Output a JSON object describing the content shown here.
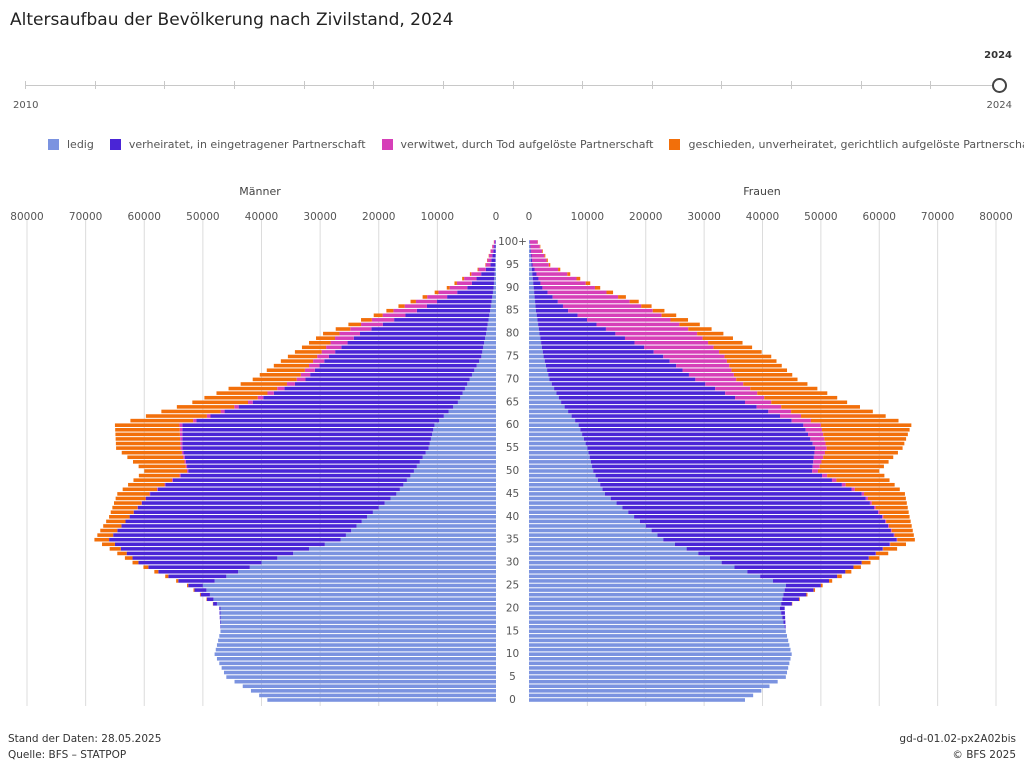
{
  "title": "Altersaufbau der Bevölkerung nach Zivilstand, 2024",
  "year_slider": {
    "start_label": "2010",
    "end_label": "2024",
    "current_label": "2024",
    "min": 2010,
    "max": 2024,
    "value": 2024
  },
  "legend": [
    {
      "label": "ledig",
      "color": "#7b93e0"
    },
    {
      "label": "verheiratet, in eingetragener Partnerschaft",
      "color": "#4a25d6"
    },
    {
      "label": "verwitwet, durch Tod aufgelöste Partnerschaft",
      "color": "#d63fb8"
    },
    {
      "label": "geschieden, unverheiratet, gerichtlich aufgelöste Partnerschaft",
      "color": "#f26f0a"
    }
  ],
  "footer": {
    "stand": "Stand der Daten: 28.05.2025",
    "quelle": "Quelle: BFS – STATPOP",
    "code": "gd-d-01.02-px2A02bis",
    "copyright": "© BFS 2025"
  },
  "chart_data": {
    "type": "bar",
    "orientation": "horizontal-population-pyramid",
    "panels": [
      "Männer",
      "Frauen"
    ],
    "x_ticks": [
      80000,
      70000,
      60000,
      50000,
      40000,
      30000,
      20000,
      10000,
      0
    ],
    "xlim": [
      0,
      80000
    ],
    "age_ticks": [
      "0",
      "5",
      "10",
      "15",
      "20",
      "25",
      "30",
      "35",
      "40",
      "45",
      "50",
      "55",
      "60",
      "65",
      "70",
      "75",
      "80",
      "85",
      "90",
      "95",
      "100+"
    ],
    "series_names": [
      "ledig",
      "verheiratet, in eingetragener Partnerschaft",
      "verwitwet, durch Tod aufgelöste Partnerschaft",
      "geschieden, unverheiratet, gerichtlich aufgelöste Partnerschaft"
    ],
    "maenner_key_ages": [
      {
        "age": 0,
        "ledig": 39000,
        "verheiratet": 0,
        "verwitwet": 0,
        "geschieden": 0
      },
      {
        "age": 5,
        "ledig": 46000,
        "verheiratet": 0,
        "verwitwet": 0,
        "geschieden": 0
      },
      {
        "age": 10,
        "ledig": 48000,
        "verheiratet": 0,
        "verwitwet": 0,
        "geschieden": 0
      },
      {
        "age": 15,
        "ledig": 47000,
        "verheiratet": 0,
        "verwitwet": 0,
        "geschieden": 0
      },
      {
        "age": 20,
        "ledig": 47000,
        "verheiratet": 200,
        "verwitwet": 0,
        "geschieden": 0
      },
      {
        "age": 25,
        "ledig": 50000,
        "verheiratet": 2500,
        "verwitwet": 0,
        "geschieden": 200
      },
      {
        "age": 30,
        "ledig": 40000,
        "verheiratet": 21000,
        "verwitwet": 0,
        "geschieden": 1000
      },
      {
        "age": 35,
        "ledig": 26500,
        "verheiratet": 39500,
        "verwitwet": 0,
        "geschieden": 2500
      },
      {
        "age": 40,
        "ledig": 22000,
        "verheiratet": 40500,
        "verwitwet": 0,
        "geschieden": 3500
      },
      {
        "age": 45,
        "ledig": 17000,
        "verheiratet": 42000,
        "verwitwet": 100,
        "geschieden": 5500
      },
      {
        "age": 50,
        "ledig": 14000,
        "verheiratet": 38500,
        "verwitwet": 200,
        "geschieden": 7300
      },
      {
        "age": 55,
        "ledig": 11500,
        "verheiratet": 42000,
        "verwitwet": 300,
        "geschieden": 11000
      },
      {
        "age": 60,
        "ledig": 10500,
        "verheiratet": 43000,
        "verwitwet": 500,
        "geschieden": 11000
      },
      {
        "age": 65,
        "ledig": 6500,
        "verheiratet": 35000,
        "verwitwet": 800,
        "geschieden": 9500
      },
      {
        "age": 70,
        "ledig": 4500,
        "verheiratet": 28000,
        "verwitwet": 1500,
        "geschieden": 7500
      },
      {
        "age": 75,
        "ledig": 2500,
        "verheiratet": 26000,
        "verwitwet": 2000,
        "geschieden": 5000
      },
      {
        "age": 80,
        "ledig": 1700,
        "verheiratet": 21500,
        "verwitwet": 3500,
        "geschieden": 2800
      },
      {
        "age": 85,
        "ledig": 1000,
        "verheiratet": 12500,
        "verwitwet": 4000,
        "geschieden": 1200
      },
      {
        "age": 90,
        "ledig": 400,
        "verheiratet": 4500,
        "verwitwet": 3000,
        "geschieden": 500
      },
      {
        "age": 95,
        "ledig": 150,
        "verheiratet": 800,
        "verwitwet": 800,
        "geschieden": 80
      },
      {
        "age": 100,
        "ledig": 50,
        "verheiratet": 100,
        "verwitwet": 200,
        "geschieden": 20
      }
    ],
    "frauen_key_ages": [
      {
        "age": 0,
        "ledig": 37000,
        "verheiratet": 0,
        "verwitwet": 0,
        "geschieden": 0
      },
      {
        "age": 5,
        "ledig": 44000,
        "verheiratet": 0,
        "verwitwet": 0,
        "geschieden": 0
      },
      {
        "age": 10,
        "ledig": 45000,
        "verheiratet": 0,
        "verwitwet": 0,
        "geschieden": 0
      },
      {
        "age": 15,
        "ledig": 44000,
        "verheiratet": 0,
        "verwitwet": 0,
        "geschieden": 0
      },
      {
        "age": 20,
        "ledig": 43000,
        "verheiratet": 800,
        "verwitwet": 0,
        "geschieden": 0
      },
      {
        "age": 25,
        "ledig": 44000,
        "verheiratet": 6000,
        "verwitwet": 0,
        "geschieden": 300
      },
      {
        "age": 30,
        "ledig": 33000,
        "verheiratet": 24000,
        "verwitwet": 0,
        "geschieden": 1500
      },
      {
        "age": 35,
        "ledig": 23000,
        "verheiratet": 40000,
        "verwitwet": 100,
        "geschieden": 3000
      },
      {
        "age": 40,
        "ledig": 18000,
        "verheiratet": 42500,
        "verwitwet": 200,
        "geschieden": 4500
      },
      {
        "age": 45,
        "ledig": 13000,
        "verheiratet": 44000,
        "verwitwet": 400,
        "geschieden": 7000
      },
      {
        "age": 50,
        "ledig": 11000,
        "verheiratet": 37500,
        "verwitwet": 1000,
        "geschieden": 10500
      },
      {
        "age": 55,
        "ledig": 10000,
        "verheiratet": 39000,
        "verwitwet": 2000,
        "geschieden": 13000
      },
      {
        "age": 60,
        "ledig": 8500,
        "verheiratet": 38500,
        "verwitwet": 3000,
        "geschieden": 15500
      },
      {
        "age": 65,
        "ledig": 5500,
        "verheiratet": 31500,
        "verwitwet": 4500,
        "geschieden": 13000
      },
      {
        "age": 70,
        "ledig": 3500,
        "verheiratet": 25000,
        "verwitwet": 7000,
        "geschieden": 10500
      },
      {
        "age": 75,
        "ledig": 2500,
        "verheiratet": 20500,
        "verwitwet": 10500,
        "geschieden": 8000
      },
      {
        "age": 80,
        "ledig": 1800,
        "verheiratet": 13000,
        "verwitwet": 14000,
        "geschieden": 4500
      },
      {
        "age": 85,
        "ledig": 1200,
        "verheiratet": 5500,
        "verwitwet": 14500,
        "geschieden": 2000
      },
      {
        "age": 90,
        "ledig": 800,
        "verheiratet": 1500,
        "verwitwet": 9000,
        "geschieden": 900
      },
      {
        "age": 95,
        "ledig": 400,
        "verheiratet": 200,
        "verwitwet": 2800,
        "geschieden": 250
      },
      {
        "age": 100,
        "ledig": 150,
        "verheiratet": 20,
        "verwitwet": 1300,
        "geschieden": 50
      }
    ]
  }
}
